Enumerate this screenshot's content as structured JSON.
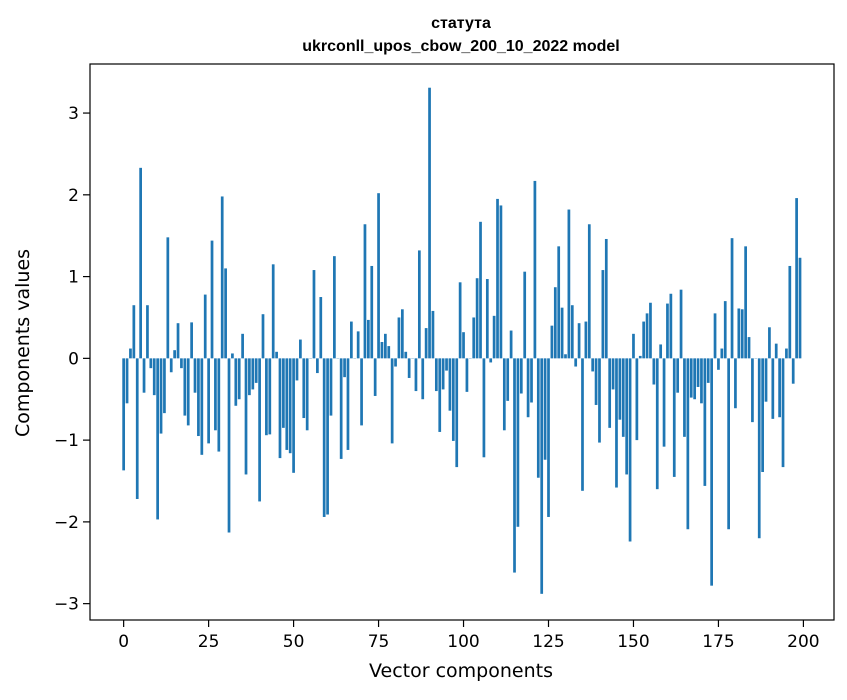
{
  "chart_data": {
    "type": "bar",
    "title_line1": "статута",
    "title_line2": "ukrconll_upos_cbow_200_10_2022 model",
    "xlabel": "Vector components",
    "ylabel": "Components values",
    "xlim": [
      -9.9,
      209
    ],
    "ylim": [
      -3.2,
      3.6
    ],
    "xticks": [
      0,
      25,
      50,
      75,
      100,
      125,
      150,
      175,
      200
    ],
    "yticks": [
      3,
      2,
      1,
      0,
      -1,
      -2,
      -3
    ],
    "ytick_labels": [
      "3",
      "2",
      "1",
      "0",
      "−1",
      "−2",
      "−3"
    ],
    "bar_color": "#1f77b4",
    "grid": false,
    "legend": "none",
    "x": [
      0,
      1,
      2,
      3,
      4,
      5,
      6,
      7,
      8,
      9,
      10,
      11,
      12,
      13,
      14,
      15,
      16,
      17,
      18,
      19,
      20,
      21,
      22,
      23,
      24,
      25,
      26,
      27,
      28,
      29,
      30,
      31,
      32,
      33,
      34,
      35,
      36,
      37,
      38,
      39,
      40,
      41,
      42,
      43,
      44,
      45,
      46,
      47,
      48,
      49,
      50,
      51,
      52,
      53,
      54,
      55,
      56,
      57,
      58,
      59,
      60,
      61,
      62,
      63,
      64,
      65,
      66,
      67,
      68,
      69,
      70,
      71,
      72,
      73,
      74,
      75,
      76,
      77,
      78,
      79,
      80,
      81,
      82,
      83,
      84,
      85,
      86,
      87,
      88,
      89,
      90,
      91,
      92,
      93,
      94,
      95,
      96,
      97,
      98,
      99,
      100,
      101,
      102,
      103,
      104,
      105,
      106,
      107,
      108,
      109,
      110,
      111,
      112,
      113,
      114,
      115,
      116,
      117,
      118,
      119,
      120,
      121,
      122,
      123,
      124,
      125,
      126,
      127,
      128,
      129,
      130,
      131,
      132,
      133,
      134,
      135,
      136,
      137,
      138,
      139,
      140,
      141,
      142,
      143,
      144,
      145,
      146,
      147,
      148,
      149,
      150,
      151,
      152,
      153,
      154,
      155,
      156,
      157,
      158,
      159,
      160,
      161,
      162,
      163,
      164,
      165,
      166,
      167,
      168,
      169,
      170,
      171,
      172,
      173,
      174,
      175,
      176,
      177,
      178,
      179,
      180,
      181,
      182,
      183,
      184,
      185,
      186,
      187,
      188,
      189,
      190,
      191,
      192,
      193,
      194,
      195,
      196,
      197,
      198,
      199
    ],
    "values": [
      -1.37,
      -0.55,
      0.12,
      0.65,
      -1.72,
      2.33,
      -0.42,
      0.65,
      -0.12,
      -0.45,
      -1.97,
      -0.92,
      -0.67,
      1.48,
      -0.17,
      0.1,
      0.43,
      -0.12,
      -0.7,
      -0.82,
      0.44,
      -0.42,
      -0.95,
      -1.18,
      0.78,
      -1.04,
      1.44,
      -0.88,
      -1.14,
      1.98,
      1.1,
      -2.13,
      0.06,
      -0.58,
      -0.5,
      0.3,
      -1.42,
      -0.45,
      -0.38,
      -0.3,
      -1.75,
      0.54,
      -0.94,
      -0.93,
      1.15,
      0.08,
      -1.22,
      -0.85,
      -1.12,
      -1.16,
      -1.4,
      -0.27,
      0.23,
      -0.73,
      -0.88,
      0.0,
      1.08,
      -0.18,
      0.75,
      -1.94,
      -1.91,
      -0.7,
      1.25,
      0.0,
      -1.23,
      -0.23,
      -1.12,
      0.45,
      0.0,
      0.33,
      -0.82,
      1.64,
      0.47,
      1.13,
      -0.46,
      2.02,
      0.2,
      0.3,
      0.15,
      -1.04,
      -0.1,
      0.5,
      0.6,
      0.08,
      -0.24,
      0.0,
      -0.4,
      1.32,
      -0.5,
      0.37,
      3.31,
      0.58,
      -0.4,
      -0.9,
      -0.38,
      -0.15,
      -0.64,
      -1.01,
      -1.33,
      0.93,
      0.32,
      -0.41,
      0.0,
      0.5,
      0.98,
      1.67,
      -1.21,
      0.97,
      -0.05,
      0.52,
      1.95,
      1.87,
      -0.88,
      -0.52,
      0.34,
      -2.62,
      -2.06,
      -0.43,
      1.06,
      -0.72,
      -0.54,
      2.17,
      -1.46,
      -2.88,
      -1.24,
      -1.94,
      0.4,
      0.87,
      1.37,
      0.62,
      0.05,
      1.82,
      0.65,
      -0.1,
      0.43,
      -1.62,
      0.45,
      1.64,
      -0.16,
      -0.57,
      -1.03,
      1.08,
      1.46,
      -0.85,
      -0.38,
      -1.58,
      -0.75,
      -0.96,
      -1.42,
      -2.24,
      0.3,
      -1.0,
      0.03,
      0.45,
      0.55,
      0.68,
      -0.32,
      -1.6,
      0.17,
      -1.08,
      0.67,
      0.79,
      -1.45,
      -0.42,
      0.84,
      -0.96,
      -2.09,
      -0.48,
      -0.5,
      -0.35,
      -0.55,
      -1.56,
      -0.3,
      -2.78,
      0.55,
      -0.14,
      0.12,
      0.7,
      -2.09,
      1.47,
      -0.61,
      0.61,
      0.6,
      1.37,
      0.26,
      -0.78,
      0.0,
      -2.2,
      -1.39,
      -0.53,
      0.38,
      -0.74,
      0.18,
      -0.72,
      -1.33,
      0.12,
      1.13,
      -0.31,
      1.96,
      1.23
    ]
  }
}
